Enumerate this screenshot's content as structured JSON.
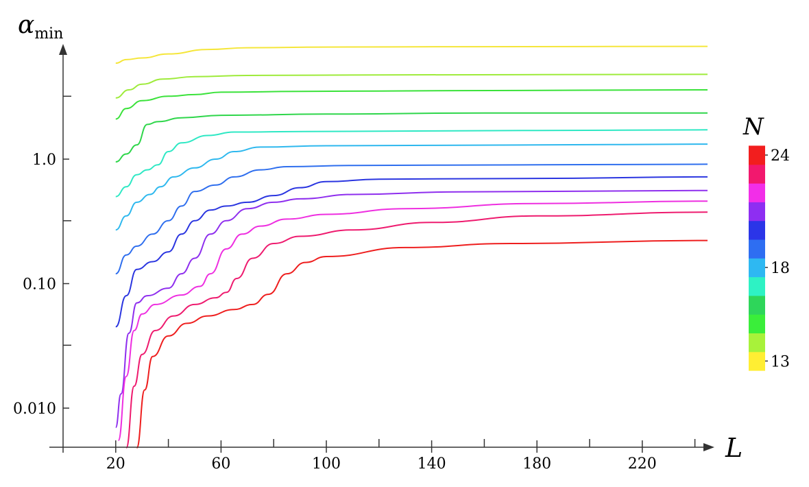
{
  "chart_data": {
    "type": "line",
    "x_axis": {
      "label": "L",
      "min": 0,
      "max": 246,
      "ticks": [
        20,
        60,
        100,
        140,
        180,
        220
      ],
      "tick_labels": [
        "20",
        "60",
        "100",
        "140",
        "180",
        "220"
      ],
      "minor_ticks": [
        40,
        80,
        120,
        160,
        200,
        240
      ]
    },
    "y_axis": {
      "label_base": "α",
      "label_sub": "min",
      "scale": "log",
      "min": 0.0063,
      "max": 9.2,
      "ticks": [
        0.01,
        0.1,
        1.0
      ],
      "tick_labels": [
        "0.010",
        "0.10",
        "1.0"
      ],
      "minor_ticks": [
        0.032,
        0.32,
        3.2
      ]
    },
    "colorbar": {
      "label": "N",
      "min": 13,
      "max": 24,
      "tick_labels": [
        "24",
        "18",
        "13"
      ],
      "tick_values": [
        24,
        18,
        13
      ],
      "colors": [
        "#FFEE33",
        "#A8F23A",
        "#3AEE3A",
        "#2ED65A",
        "#2EF2C4",
        "#2EB8F2",
        "#2E6EF2",
        "#2B35E8",
        "#8E2EF2",
        "#F22EE8",
        "#F2186E",
        "#F21E1E"
      ]
    },
    "grid": false,
    "series": [
      {
        "color": "#F5E63A",
        "points": [
          [
            20,
            5.9
          ],
          [
            24,
            6.3
          ],
          [
            30,
            6.5
          ],
          [
            40,
            7.0
          ],
          [
            55,
            7.6
          ],
          [
            70,
            7.85
          ],
          [
            100,
            7.95
          ],
          [
            150,
            8.0
          ],
          [
            245,
            8.05
          ]
        ]
      },
      {
        "color": "#9EEB3A",
        "points": [
          [
            20,
            3.1
          ],
          [
            25,
            3.6
          ],
          [
            30,
            4.0
          ],
          [
            38,
            4.4
          ],
          [
            50,
            4.6
          ],
          [
            70,
            4.7
          ],
          [
            120,
            4.75
          ],
          [
            245,
            4.8
          ]
        ]
      },
      {
        "color": "#3AE23A",
        "points": [
          [
            20,
            2.1
          ],
          [
            24,
            2.55
          ],
          [
            30,
            2.95
          ],
          [
            40,
            3.2
          ],
          [
            50,
            3.3
          ],
          [
            60,
            3.45
          ],
          [
            90,
            3.5
          ],
          [
            150,
            3.55
          ],
          [
            245,
            3.6
          ]
        ]
      },
      {
        "color": "#2ED64A",
        "points": [
          [
            20,
            0.95
          ],
          [
            24,
            1.1
          ],
          [
            28,
            1.3
          ],
          [
            32,
            1.9
          ],
          [
            36,
            2.0
          ],
          [
            45,
            2.15
          ],
          [
            60,
            2.25
          ],
          [
            100,
            2.3
          ],
          [
            160,
            2.35
          ],
          [
            245,
            2.35
          ]
        ]
      },
      {
        "color": "#2EE8C4",
        "points": [
          [
            20,
            0.5
          ],
          [
            24,
            0.6
          ],
          [
            28,
            0.75
          ],
          [
            32,
            0.82
          ],
          [
            36,
            0.9
          ],
          [
            40,
            1.15
          ],
          [
            45,
            1.35
          ],
          [
            55,
            1.55
          ],
          [
            65,
            1.65
          ],
          [
            100,
            1.67
          ],
          [
            180,
            1.7
          ],
          [
            245,
            1.72
          ]
        ]
      },
      {
        "color": "#2EB8EE",
        "points": [
          [
            20,
            0.27
          ],
          [
            24,
            0.35
          ],
          [
            28,
            0.45
          ],
          [
            33,
            0.52
          ],
          [
            37,
            0.6
          ],
          [
            42,
            0.72
          ],
          [
            50,
            0.85
          ],
          [
            58,
            1.0
          ],
          [
            65,
            1.15
          ],
          [
            75,
            1.25
          ],
          [
            100,
            1.28
          ],
          [
            180,
            1.3
          ],
          [
            245,
            1.32
          ]
        ]
      },
      {
        "color": "#2E6EEE",
        "points": [
          [
            20,
            0.12
          ],
          [
            24,
            0.17
          ],
          [
            28,
            0.2
          ],
          [
            34,
            0.25
          ],
          [
            40,
            0.32
          ],
          [
            45,
            0.42
          ],
          [
            50,
            0.55
          ],
          [
            58,
            0.62
          ],
          [
            65,
            0.72
          ],
          [
            75,
            0.82
          ],
          [
            85,
            0.87
          ],
          [
            110,
            0.89
          ],
          [
            180,
            0.9
          ],
          [
            245,
            0.91
          ]
        ]
      },
      {
        "color": "#2A35E0",
        "points": [
          [
            20,
            0.045
          ],
          [
            24,
            0.08
          ],
          [
            28,
            0.13
          ],
          [
            34,
            0.15
          ],
          [
            40,
            0.18
          ],
          [
            45,
            0.25
          ],
          [
            50,
            0.32
          ],
          [
            56,
            0.39
          ],
          [
            62,
            0.42
          ],
          [
            70,
            0.45
          ],
          [
            80,
            0.51
          ],
          [
            90,
            0.59
          ],
          [
            100,
            0.66
          ],
          [
            120,
            0.69
          ],
          [
            180,
            0.7
          ],
          [
            245,
            0.72
          ]
        ]
      },
      {
        "color": "#8E2EEE",
        "points": [
          [
            20,
            0.007
          ],
          [
            22,
            0.013
          ],
          [
            25,
            0.04
          ],
          [
            28,
            0.07
          ],
          [
            32,
            0.08
          ],
          [
            40,
            0.092
          ],
          [
            45,
            0.12
          ],
          [
            50,
            0.16
          ],
          [
            56,
            0.25
          ],
          [
            62,
            0.32
          ],
          [
            70,
            0.4
          ],
          [
            80,
            0.45
          ],
          [
            90,
            0.48
          ],
          [
            110,
            0.52
          ],
          [
            150,
            0.545
          ],
          [
            245,
            0.56
          ]
        ]
      },
      {
        "color": "#EE2EE0",
        "points": [
          [
            21,
            0.0055
          ],
          [
            24,
            0.018
          ],
          [
            27,
            0.042
          ],
          [
            30,
            0.057
          ],
          [
            35,
            0.068
          ],
          [
            45,
            0.081
          ],
          [
            52,
            0.095
          ],
          [
            56,
            0.12
          ],
          [
            62,
            0.19
          ],
          [
            68,
            0.25
          ],
          [
            75,
            0.29
          ],
          [
            85,
            0.33
          ],
          [
            100,
            0.36
          ],
          [
            130,
            0.4
          ],
          [
            180,
            0.44
          ],
          [
            245,
            0.46
          ]
        ]
      },
      {
        "color": "#EE1A6E",
        "points": [
          [
            24,
            0.0048
          ],
          [
            27,
            0.015
          ],
          [
            30,
            0.027
          ],
          [
            35,
            0.042
          ],
          [
            42,
            0.055
          ],
          [
            50,
            0.068
          ],
          [
            58,
            0.077
          ],
          [
            62,
            0.085
          ],
          [
            66,
            0.11
          ],
          [
            72,
            0.16
          ],
          [
            80,
            0.21
          ],
          [
            90,
            0.24
          ],
          [
            110,
            0.27
          ],
          [
            140,
            0.31
          ],
          [
            180,
            0.35
          ],
          [
            245,
            0.375
          ]
        ]
      },
      {
        "color": "#EE1E1E",
        "points": [
          [
            28,
            0.0048
          ],
          [
            31,
            0.014
          ],
          [
            34,
            0.026
          ],
          [
            40,
            0.038
          ],
          [
            47,
            0.048
          ],
          [
            55,
            0.055
          ],
          [
            65,
            0.062
          ],
          [
            72,
            0.068
          ],
          [
            78,
            0.082
          ],
          [
            85,
            0.12
          ],
          [
            92,
            0.148
          ],
          [
            100,
            0.165
          ],
          [
            130,
            0.195
          ],
          [
            170,
            0.21
          ],
          [
            245,
            0.222
          ]
        ]
      }
    ]
  }
}
